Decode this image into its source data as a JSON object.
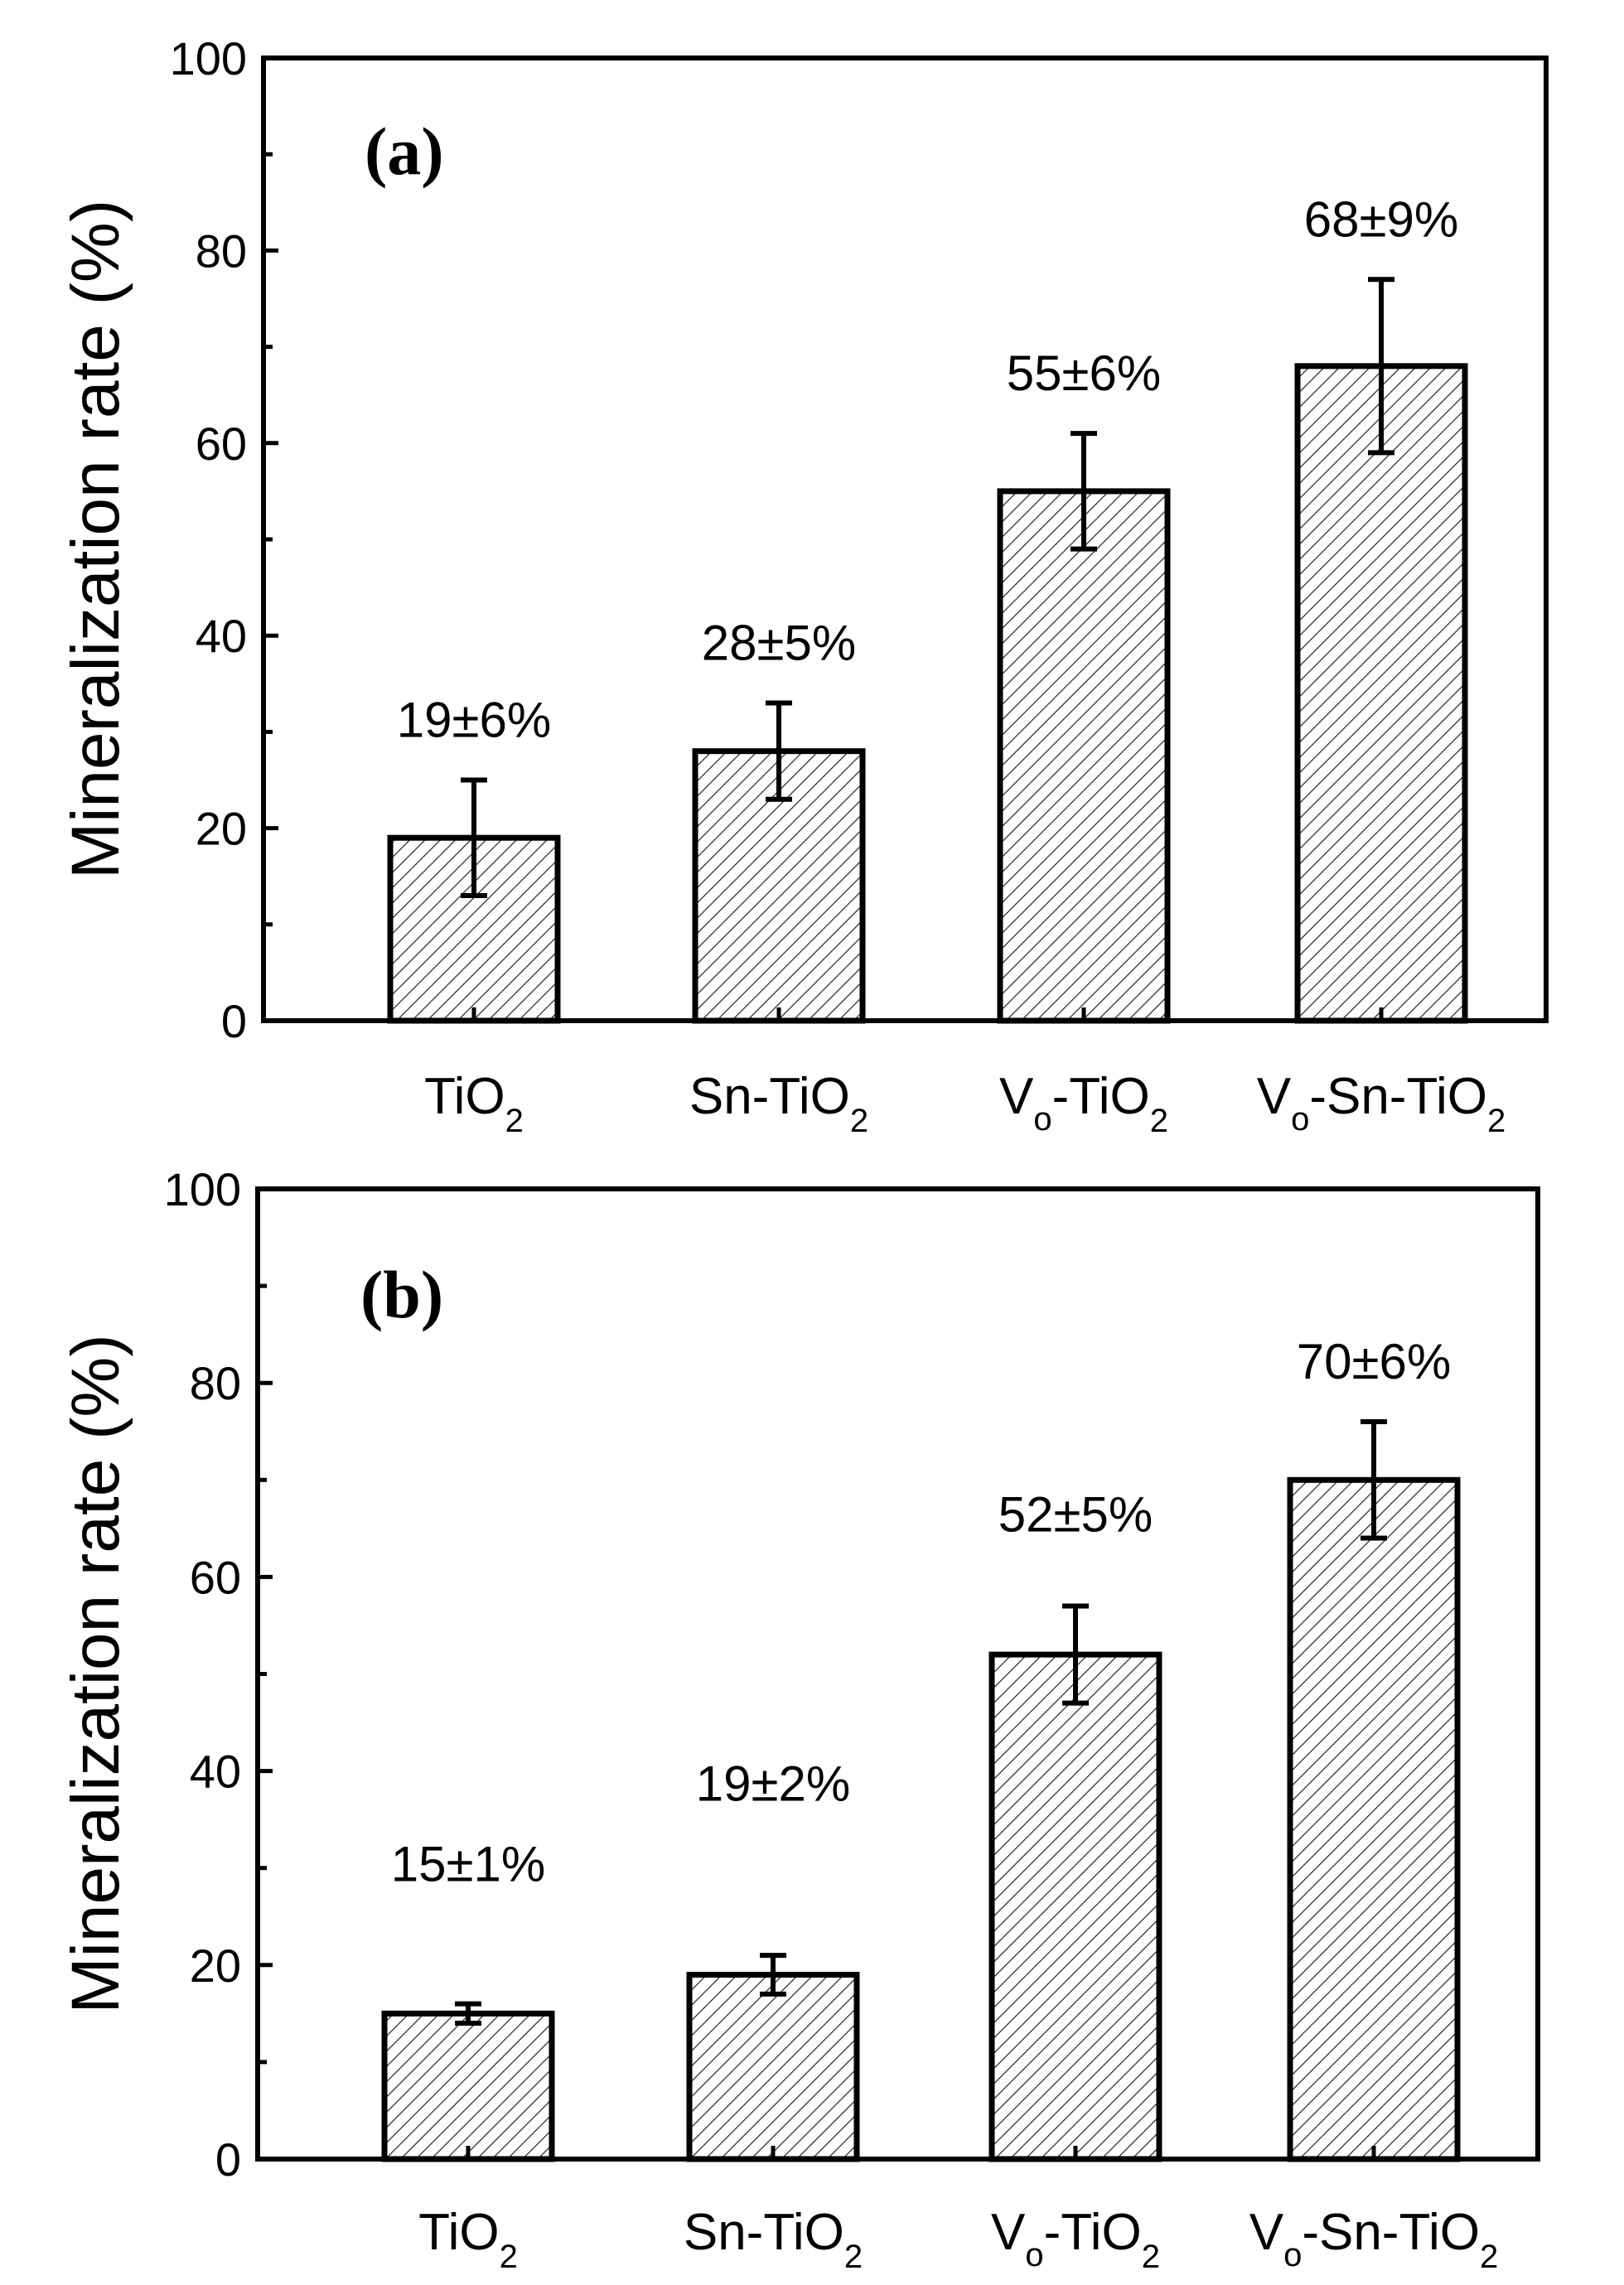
{
  "chart_data": [
    {
      "type": "bar",
      "panel": "(a)",
      "ylabel": "Mineralization rate (%)",
      "ylim": [
        0,
        100
      ],
      "yticks": [
        "0",
        "20",
        "40",
        "60",
        "80",
        "100"
      ],
      "categories": [
        {
          "base": "TiO",
          "sub": "2",
          "pre": "",
          "presub": "",
          "mid": ""
        },
        {
          "base": "Sn-TiO",
          "sub": "2",
          "pre": "",
          "presub": "",
          "mid": ""
        },
        {
          "base": "-TiO",
          "sub": "2",
          "pre": "V",
          "presub": "o",
          "mid": ""
        },
        {
          "base": "-Sn-TiO",
          "sub": "2",
          "pre": "V",
          "presub": "o",
          "mid": ""
        }
      ],
      "values": [
        19,
        28,
        55,
        68
      ],
      "errors": [
        6,
        5,
        6,
        9
      ],
      "labels": [
        "19±6%",
        "28±5%",
        "55±6%",
        "68±9%"
      ]
    },
    {
      "type": "bar",
      "panel": "(b)",
      "ylabel": "Mineralization rate (%)",
      "ylim": [
        0,
        100
      ],
      "yticks": [
        "0",
        "20",
        "40",
        "60",
        "80",
        "100"
      ],
      "categories": [
        {
          "base": "TiO",
          "sub": "2",
          "pre": "",
          "presub": "",
          "mid": ""
        },
        {
          "base": "Sn-TiO",
          "sub": "2",
          "pre": "",
          "presub": "",
          "mid": ""
        },
        {
          "base": "-TiO",
          "sub": "2",
          "pre": "V",
          "presub": "o",
          "mid": ""
        },
        {
          "base": "-Sn-TiO",
          "sub": "2",
          "pre": "V",
          "presub": "o",
          "mid": ""
        }
      ],
      "values": [
        15,
        19,
        52,
        70
      ],
      "errors": [
        1,
        2,
        5,
        6
      ],
      "labels": [
        "15±1%",
        "19±2%",
        "52±5%",
        "70±6%"
      ]
    }
  ]
}
